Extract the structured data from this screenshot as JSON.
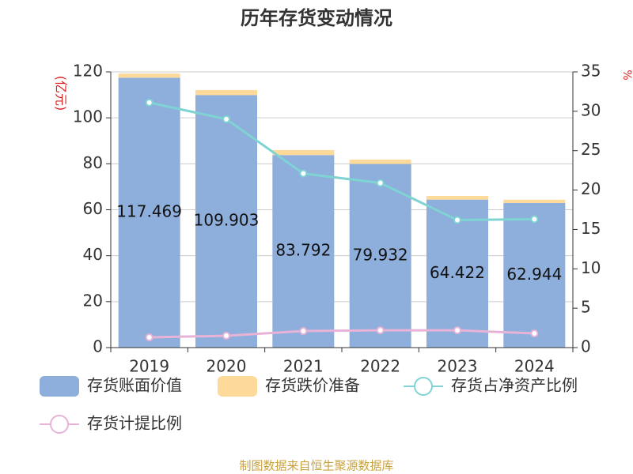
{
  "chart_data": {
    "type": "bar",
    "title": "历年存货变动情况",
    "ylabel": "(亿元)",
    "y2label": "%",
    "source": "制图数据来自恒生聚源数据库",
    "categories": [
      "2019",
      "2020",
      "2021",
      "2022",
      "2023",
      "2024"
    ],
    "series": [
      {
        "name": "存货账面价值",
        "type": "bar",
        "color": "#8eaedb",
        "values": [
          117.469,
          109.903,
          83.792,
          79.932,
          64.422,
          62.944
        ],
        "show_labels": true
      },
      {
        "name": "存货跌价准备",
        "type": "bar",
        "color": "#fdd99a",
        "values": [
          1.8,
          2.2,
          2.2,
          1.9,
          1.6,
          1.4
        ]
      },
      {
        "name": "存货占净资产比例",
        "type": "line",
        "axis": "y2",
        "color": "#7fd3d3",
        "values": [
          31.1,
          29.0,
          22.1,
          20.9,
          16.2,
          16.3
        ]
      },
      {
        "name": "存货计提比例",
        "type": "line",
        "axis": "y2",
        "color": "#e7b3d6",
        "values": [
          1.3,
          1.5,
          2.1,
          2.2,
          2.2,
          1.8
        ]
      }
    ],
    "ylim": [
      0,
      120
    ],
    "yticks": [
      0,
      20,
      40,
      60,
      80,
      100,
      120
    ],
    "y2lim": [
      0,
      35
    ],
    "y2ticks": [
      0,
      5,
      10,
      15,
      20,
      25,
      30,
      35
    ],
    "grid": true,
    "stacked": true
  }
}
